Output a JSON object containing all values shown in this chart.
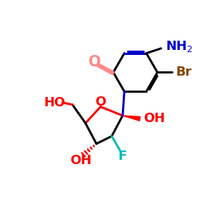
{
  "bg_color": "#ffffff",
  "bond_color": "#000000",
  "bond_lw": 2.2,
  "colors": {
    "N": "#0000cc",
    "O": "#ff0000",
    "F": "#00bbbb",
    "Br": "#884400",
    "C_carbonyl_bond": "#ff8888",
    "NH2": "#0000cc"
  },
  "figsize": [
    3.0,
    3.0
  ],
  "dpi": 100,
  "xlim": [
    0,
    10
  ],
  "ylim": [
    0,
    10
  ]
}
